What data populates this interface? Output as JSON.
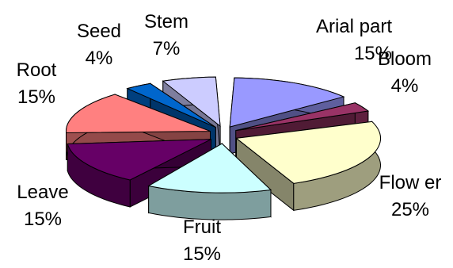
{
  "chart_data": {
    "type": "pie",
    "title": "",
    "legend": "none",
    "slices": [
      {
        "label": "Arial part",
        "value_label": "15%",
        "value": 15,
        "color": "#9999ff",
        "exploded": true
      },
      {
        "label": "Bloom",
        "value_label": "4%",
        "value": 4,
        "color": "#993366",
        "exploded": true
      },
      {
        "label": "Flow er",
        "value_label": "25%",
        "value": 25,
        "color": "#ffffcc",
        "exploded": true
      },
      {
        "label": "Fruit",
        "value_label": "15%",
        "value": 15,
        "color": "#ccffff",
        "exploded": true
      },
      {
        "label": "Leave",
        "value_label": "15%",
        "value": 15,
        "color": "#660066",
        "exploded": true
      },
      {
        "label": "Root",
        "value_label": "15%",
        "value": 15,
        "color": "#ff8080",
        "exploded": true
      },
      {
        "label": "Seed",
        "value_label": "4%",
        "value": 4,
        "color": "#0066cc",
        "exploded": true
      },
      {
        "label": "Stem",
        "value_label": "7%",
        "value": 7,
        "color": "#ccccff",
        "exploded": true
      }
    ]
  }
}
